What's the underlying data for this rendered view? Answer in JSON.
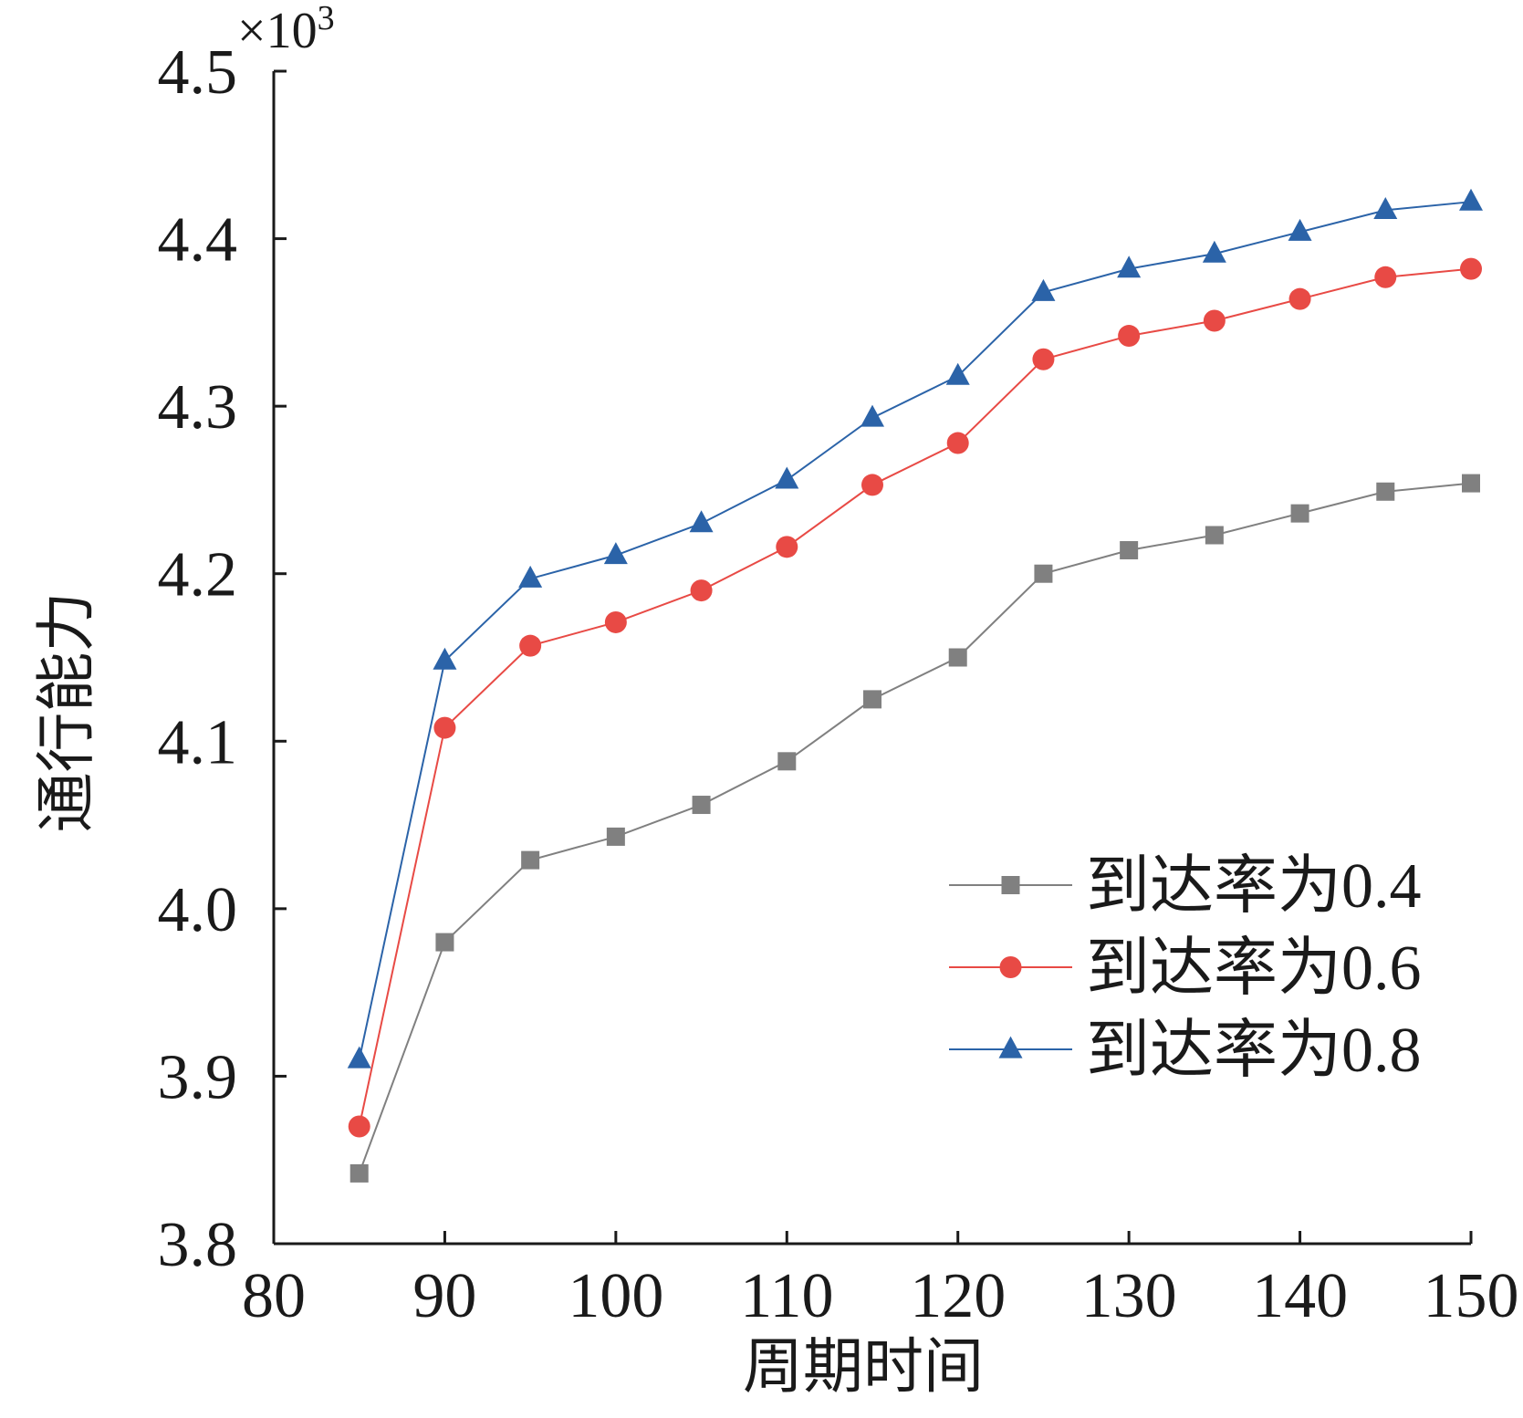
{
  "chart_data": {
    "type": "line",
    "title": "",
    "xlabel": "周期时间",
    "ylabel": "通行能力",
    "y_multiplier_base": "×10",
    "y_multiplier_exp": "3",
    "xlim": [
      80,
      150
    ],
    "ylim": [
      3.8,
      4.5
    ],
    "x_ticks": [
      80,
      90,
      100,
      110,
      120,
      130,
      140,
      150
    ],
    "x_tick_labels": [
      "80",
      "90",
      "100",
      "110",
      "120",
      "130",
      "140",
      "150"
    ],
    "y_ticks": [
      3.8,
      3.9,
      4.0,
      4.1,
      4.2,
      4.3,
      4.4,
      4.5
    ],
    "y_tick_labels": [
      "3.8",
      "3.9",
      "4.0",
      "4.1",
      "4.2",
      "4.3",
      "4.4",
      "4.5"
    ],
    "grid": false,
    "legend_position": "right",
    "x": [
      85,
      90,
      95,
      100,
      105,
      110,
      115,
      120,
      125,
      130,
      135,
      140,
      145,
      150
    ],
    "series": [
      {
        "name": "到达率为0.4",
        "color": "#808080",
        "marker": "square",
        "values": [
          3.842,
          3.98,
          4.029,
          4.043,
          4.062,
          4.088,
          4.125,
          4.15,
          4.2,
          4.214,
          4.223,
          4.236,
          4.249,
          4.254
        ]
      },
      {
        "name": "到达率为0.6",
        "color": "#e84a45",
        "marker": "circle",
        "values": [
          3.87,
          4.108,
          4.157,
          4.171,
          4.19,
          4.216,
          4.253,
          4.278,
          4.328,
          4.342,
          4.351,
          4.364,
          4.377,
          4.382
        ]
      },
      {
        "name": "到达率为0.8",
        "color": "#2b63a8",
        "marker": "triangle",
        "values": [
          3.91,
          4.148,
          4.197,
          4.211,
          4.23,
          4.256,
          4.293,
          4.318,
          4.368,
          4.382,
          4.391,
          4.404,
          4.417,
          4.422
        ]
      }
    ]
  }
}
